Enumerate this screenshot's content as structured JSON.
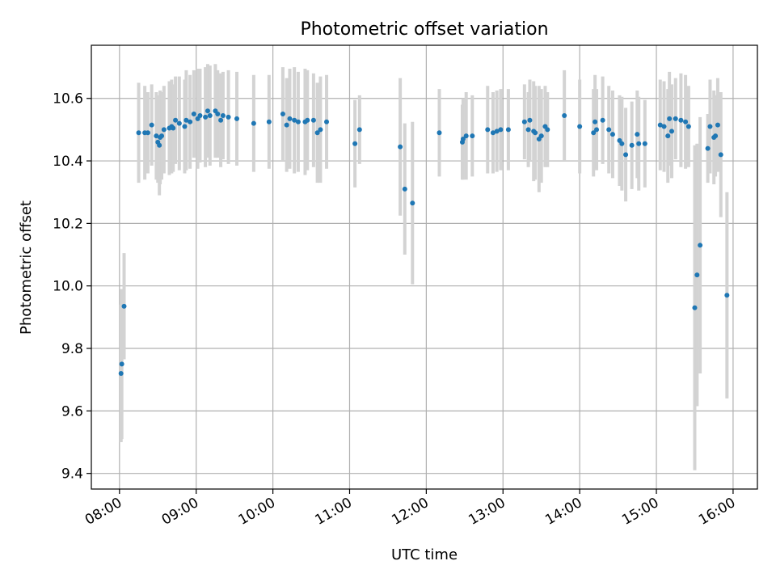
{
  "chart_data": {
    "type": "scatter",
    "title": "Photometric offset variation",
    "xlabel": "UTC time",
    "ylabel": "Photometric offset",
    "x_unit": "hour",
    "xlim": [
      7.633,
      16.317
    ],
    "ylim": [
      9.35,
      10.77
    ],
    "xticks": [
      8,
      9,
      10,
      11,
      12,
      13,
      14,
      15,
      16
    ],
    "xtick_labels": [
      "08:00",
      "09:00",
      "10:00",
      "11:00",
      "12:00",
      "13:00",
      "14:00",
      "15:00",
      "16:00"
    ],
    "yticks": [
      9.4,
      9.6,
      9.8,
      10.0,
      10.2,
      10.4,
      10.6
    ],
    "ytick_labels": [
      "9.4",
      "9.6",
      "9.8",
      "10.0",
      "10.2",
      "10.4",
      "10.6"
    ],
    "grid": true,
    "colors": {
      "point": "#1f77b4",
      "errorbar": "#d3d3d3",
      "grid": "#b0b0b0"
    },
    "points": [
      [
        8.02,
        9.72,
        0.22
      ],
      [
        8.03,
        9.75,
        0.24
      ],
      [
        8.06,
        9.935,
        0.17
      ],
      [
        8.25,
        10.49,
        0.16
      ],
      [
        8.33,
        10.49,
        0.15
      ],
      [
        8.37,
        10.49,
        0.13
      ],
      [
        8.42,
        10.515,
        0.13
      ],
      [
        8.48,
        10.48,
        0.14
      ],
      [
        8.5,
        10.46,
        0.13
      ],
      [
        8.52,
        10.45,
        0.16
      ],
      [
        8.53,
        10.475,
        0.15
      ],
      [
        8.55,
        10.48,
        0.14
      ],
      [
        8.58,
        10.5,
        0.14
      ],
      [
        8.65,
        10.505,
        0.15
      ],
      [
        8.68,
        10.51,
        0.15
      ],
      [
        8.7,
        10.505,
        0.14
      ],
      [
        8.73,
        10.53,
        0.14
      ],
      [
        8.78,
        10.52,
        0.15
      ],
      [
        8.85,
        10.51,
        0.15
      ],
      [
        8.87,
        10.53,
        0.16
      ],
      [
        8.92,
        10.525,
        0.15
      ],
      [
        8.97,
        10.55,
        0.14
      ],
      [
        9.02,
        10.535,
        0.16
      ],
      [
        9.05,
        10.545,
        0.15
      ],
      [
        9.12,
        10.54,
        0.16
      ],
      [
        9.15,
        10.56,
        0.15
      ],
      [
        9.18,
        10.545,
        0.16
      ],
      [
        9.25,
        10.56,
        0.15
      ],
      [
        9.28,
        10.55,
        0.14
      ],
      [
        9.32,
        10.53,
        0.15
      ],
      [
        9.35,
        10.545,
        0.14
      ],
      [
        9.42,
        10.54,
        0.15
      ],
      [
        9.53,
        10.535,
        0.15
      ],
      [
        9.75,
        10.52,
        0.155
      ],
      [
        9.95,
        10.525,
        0.15
      ],
      [
        10.13,
        10.55,
        0.15
      ],
      [
        10.18,
        10.515,
        0.15
      ],
      [
        10.22,
        10.535,
        0.16
      ],
      [
        10.28,
        10.53,
        0.17
      ],
      [
        10.33,
        10.525,
        0.16
      ],
      [
        10.42,
        10.525,
        0.17
      ],
      [
        10.45,
        10.53,
        0.16
      ],
      [
        10.53,
        10.53,
        0.15
      ],
      [
        10.58,
        10.49,
        0.16
      ],
      [
        10.62,
        10.5,
        0.17
      ],
      [
        10.7,
        10.525,
        0.15
      ],
      [
        11.07,
        10.455,
        0.14
      ],
      [
        11.13,
        10.5,
        0.11
      ],
      [
        11.66,
        10.445,
        0.22
      ],
      [
        11.72,
        10.31,
        0.21
      ],
      [
        11.82,
        10.265,
        0.26
      ],
      [
        12.17,
        10.49,
        0.14
      ],
      [
        12.47,
        10.46,
        0.12
      ],
      [
        12.48,
        10.47,
        0.13
      ],
      [
        12.52,
        10.48,
        0.14
      ],
      [
        12.6,
        10.48,
        0.13
      ],
      [
        12.8,
        10.5,
        0.14
      ],
      [
        12.87,
        10.49,
        0.13
      ],
      [
        12.92,
        10.495,
        0.13
      ],
      [
        12.97,
        10.5,
        0.13
      ],
      [
        13.07,
        10.5,
        0.13
      ],
      [
        13.28,
        10.525,
        0.12
      ],
      [
        13.33,
        10.5,
        0.12
      ],
      [
        13.35,
        10.53,
        0.13
      ],
      [
        13.4,
        10.495,
        0.16
      ],
      [
        13.42,
        10.49,
        0.15
      ],
      [
        13.47,
        10.47,
        0.17
      ],
      [
        13.5,
        10.48,
        0.15
      ],
      [
        13.55,
        10.51,
        0.13
      ],
      [
        13.58,
        10.5,
        0.12
      ],
      [
        13.8,
        10.545,
        0.145
      ],
      [
        14.0,
        10.51,
        0.15
      ],
      [
        14.18,
        10.49,
        0.14
      ],
      [
        14.2,
        10.525,
        0.15
      ],
      [
        14.22,
        10.5,
        0.13
      ],
      [
        14.3,
        10.53,
        0.14
      ],
      [
        14.38,
        10.5,
        0.14
      ],
      [
        14.43,
        10.485,
        0.14
      ],
      [
        14.52,
        10.465,
        0.145
      ],
      [
        14.55,
        10.455,
        0.15
      ],
      [
        14.6,
        10.42,
        0.15
      ],
      [
        14.68,
        10.45,
        0.14
      ],
      [
        14.75,
        10.485,
        0.14
      ],
      [
        14.77,
        10.455,
        0.15
      ],
      [
        14.85,
        10.455,
        0.14
      ],
      [
        15.05,
        10.515,
        0.145
      ],
      [
        15.1,
        10.51,
        0.145
      ],
      [
        15.15,
        10.48,
        0.15
      ],
      [
        15.17,
        10.535,
        0.15
      ],
      [
        15.2,
        10.495,
        0.15
      ],
      [
        15.25,
        10.535,
        0.13
      ],
      [
        15.32,
        10.53,
        0.15
      ],
      [
        15.38,
        10.525,
        0.15
      ],
      [
        15.42,
        10.51,
        0.13
      ],
      [
        15.5,
        9.93,
        0.52
      ],
      [
        15.53,
        10.035,
        0.42
      ],
      [
        15.57,
        10.13,
        0.41
      ],
      [
        15.67,
        10.44,
        0.11
      ],
      [
        15.7,
        10.51,
        0.15
      ],
      [
        15.75,
        10.475,
        0.15
      ],
      [
        15.77,
        10.48,
        0.13
      ],
      [
        15.8,
        10.515,
        0.15
      ],
      [
        15.84,
        10.42,
        0.2
      ],
      [
        15.92,
        9.97,
        0.33
      ]
    ]
  }
}
